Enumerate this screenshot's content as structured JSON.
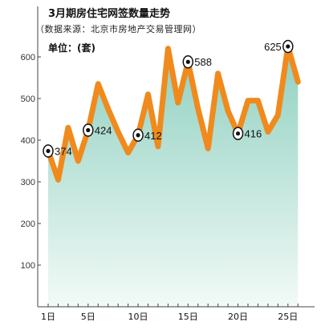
{
  "chart_data": {
    "type": "area",
    "title": "3月期房住宅网签数量走势",
    "subtitle": "（数据来源：北京市房地产交易管理网）",
    "unit_label": "单位：(套)",
    "xlabel": "",
    "ylabel": "",
    "ylim": [
      0,
      680
    ],
    "y_ticks": [
      100,
      200,
      300,
      400,
      500,
      600
    ],
    "x_ticks": [
      {
        "x": 1,
        "label": "1日"
      },
      {
        "x": 5,
        "label": "5日"
      },
      {
        "x": 10,
        "label": "10日"
      },
      {
        "x": 15,
        "label": "15日"
      },
      {
        "x": 20,
        "label": "20日"
      },
      {
        "x": 25,
        "label": "25日"
      }
    ],
    "x": [
      1,
      2,
      3,
      4,
      5,
      6,
      7,
      8,
      9,
      10,
      11,
      12,
      13,
      14,
      15,
      16,
      17,
      18,
      19,
      20,
      21,
      22,
      23,
      24,
      25,
      26
    ],
    "values": [
      374,
      305,
      430,
      350,
      424,
      535,
      475,
      420,
      370,
      412,
      510,
      385,
      620,
      490,
      588,
      475,
      380,
      560,
      470,
      416,
      495,
      495,
      420,
      460,
      625,
      540
    ],
    "data_labels": [
      {
        "x": 1,
        "text": "374"
      },
      {
        "x": 5,
        "text": "424"
      },
      {
        "x": 10,
        "text": "412"
      },
      {
        "x": 15,
        "text": "588"
      },
      {
        "x": 20,
        "text": "416"
      },
      {
        "x": 25,
        "text": "625"
      }
    ],
    "colors": {
      "line": "#f08a1c",
      "area_top": "#8fd0c0",
      "area_bottom": "#f2faf7",
      "axis": "#444444"
    },
    "grid": false,
    "legend": "none"
  }
}
